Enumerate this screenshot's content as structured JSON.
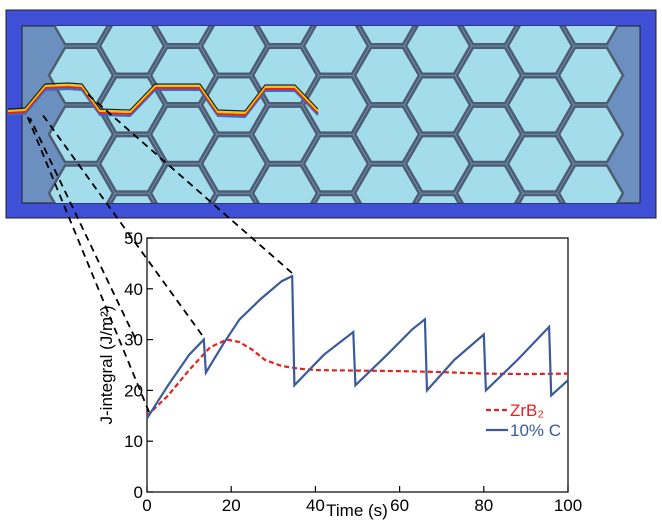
{
  "chart_data": {
    "type": "line",
    "xlabel": "Time (s)",
    "ylabel": "J-integral (J/m²)",
    "xlim": [
      0,
      100
    ],
    "xticks": [
      0,
      20,
      40,
      60,
      80,
      100
    ],
    "ylim": [
      0,
      50
    ],
    "yticks": [
      0,
      10,
      20,
      30,
      40,
      50
    ],
    "legend": "lower right",
    "series": [
      {
        "name": "ZrB₂",
        "color": "#e8201f",
        "line_style": "dashed",
        "x": [
          0,
          5,
          10,
          15,
          19,
          22,
          25,
          28,
          32,
          36,
          40,
          50,
          60,
          70,
          80,
          90,
          100
        ],
        "values": [
          15,
          19,
          24,
          28.5,
          30,
          29.5,
          28,
          26,
          24.8,
          24.3,
          24,
          23.9,
          23.8,
          23.6,
          23.3,
          23.2,
          23.3
        ]
      },
      {
        "name": "10% C",
        "color": "#3a5a9a",
        "line_style": "solid",
        "x": [
          0,
          5,
          10,
          13.5,
          14,
          18,
          22,
          27,
          32,
          34.5,
          35,
          42,
          49,
          49.5,
          57,
          63,
          66,
          66.5,
          73,
          80,
          80.5,
          88,
          95.5,
          96,
          100
        ],
        "values": [
          14.5,
          21,
          27,
          30,
          23.5,
          29,
          34,
          38,
          41.5,
          42.5,
          21,
          27,
          31.5,
          21,
          27,
          32,
          34,
          20,
          26,
          31,
          20,
          26,
          32.5,
          19,
          22
        ]
      }
    ]
  }
}
